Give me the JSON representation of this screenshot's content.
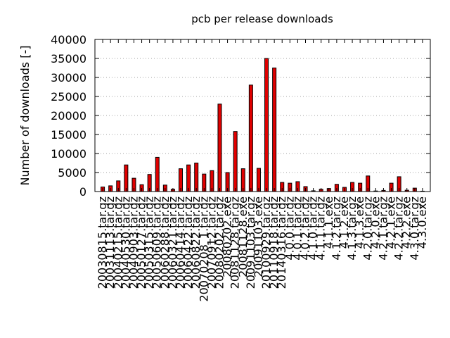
{
  "chart_data": {
    "type": "bar",
    "title": "pcb per release downloads",
    "ylabel": "Number of downloads [-]",
    "xlabel": "",
    "ylim": [
      0,
      40000
    ],
    "yticks": [
      0,
      5000,
      10000,
      15000,
      20000,
      25000,
      30000,
      35000,
      40000
    ],
    "grid": true,
    "bar_color": "#e00000",
    "categories": [
      "20030815.tar.gz",
      "20031113.tar.gz",
      "20040215.tar.gz",
      "20040530.tar.gz",
      "20040903.tar.gz",
      "20050127.tar.gz",
      "20050315.tar.gz",
      "20050609.tar.gz",
      "20060288.tar.gz",
      "20060321.tar.gz",
      "20060414.tar.gz",
      "20060422.tar.gz",
      "20060822.tar.gz",
      "20070208_1.tar.gz",
      "20070912.tar.gz",
      "20080202.tar.gz",
      "20080202.exe",
      "20081128.tar.gz",
      "20081128.exe",
      "20091103.tar.gz",
      "20091103.exe",
      "20100929.tar.gz",
      "20110918.tar.gz",
      "20140316.tar.gz",
      "4.0.0.tar.gz",
      "4.0.1.tar.gz",
      "4.0.2.tar.gz",
      "4.1.0.tar.gz",
      "4.1.1.tar.gz",
      "4.1.1.exe",
      "4.1.2.tar.gz",
      "4.1.2.exe",
      "4.1.3.tar.gz",
      "4.1.3.exe",
      "4.2.0.tar.gz",
      "4.2.0.exe",
      "4.2.1.tar.gz",
      "4.2.1.exe",
      "4.2.2.tar.gz",
      "4.2.2.exe",
      "4.3.0.tar.gz",
      "4.3.0.exe"
    ],
    "values": [
      1200,
      1500,
      2800,
      7000,
      3500,
      1800,
      4500,
      9000,
      1700,
      600,
      6000,
      7000,
      7500,
      4600,
      5500,
      23000,
      5000,
      15800,
      6000,
      28000,
      6100,
      35000,
      32500,
      2400,
      2200,
      2600,
      1300,
      200,
      600,
      800,
      1900,
      1100,
      2400,
      2200,
      4100,
      150,
      300,
      2200,
      3900,
      350,
      900,
      100
    ]
  }
}
